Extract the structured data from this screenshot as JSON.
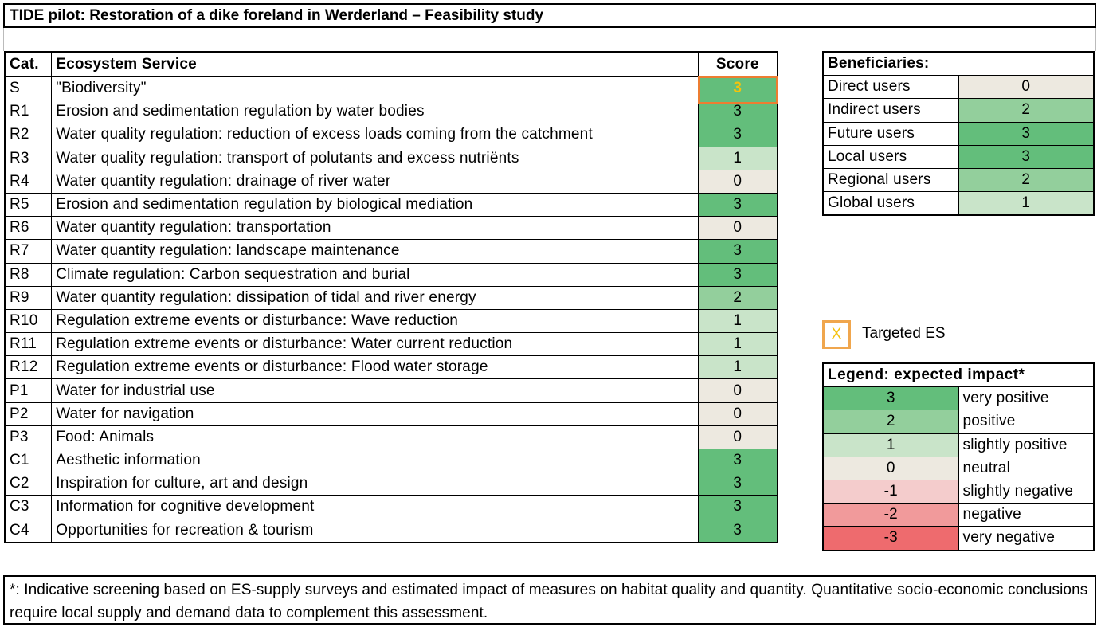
{
  "title": "TIDE pilot: Restoration of a dike foreland in Werderland – Feasibility study",
  "colors": {
    "3": "#63be7b",
    "2": "#93cf9c",
    "1": "#c9e4c9",
    "0": "#ede9e0",
    "-1": "#f4cccc",
    "-2": "#f19a9b",
    "-3": "#ee6b6e",
    "target_frame": "#ed7d31",
    "target_text": "#f4c20d"
  },
  "main_table": {
    "headers": {
      "cat": "Cat.",
      "service": "Ecosystem Service",
      "score": "Score"
    },
    "rows": [
      {
        "cat": "S",
        "service": "\"Biodiversity\"",
        "score": "3",
        "targeted": true
      },
      {
        "cat": "R1",
        "service": "Erosion and sedimentation regulation by water bodies",
        "score": "3"
      },
      {
        "cat": "R2",
        "service": "Water quality regulation: reduction of excess loads coming from the catchment",
        "score": "3"
      },
      {
        "cat": "R3",
        "service": "Water quality regulation: transport of polutants and excess nutriënts",
        "score": "1"
      },
      {
        "cat": "R4",
        "service": "Water quantity regulation: drainage of river water",
        "score": "0"
      },
      {
        "cat": "R5",
        "service": "Erosion and sedimentation regulation by biological mediation",
        "score": "3"
      },
      {
        "cat": "R6",
        "service": "Water quantity regulation: transportation",
        "score": "0"
      },
      {
        "cat": "R7",
        "service": "Water quantity regulation: landscape maintenance",
        "score": "3"
      },
      {
        "cat": "R8",
        "service": "Climate regulation: Carbon sequestration and burial",
        "score": "3"
      },
      {
        "cat": "R9",
        "service": "Water quantity regulation: dissipation of tidal and river energy",
        "score": "2"
      },
      {
        "cat": "R10",
        "service": "Regulation extreme events or disturbance: Wave reduction",
        "score": "1"
      },
      {
        "cat": "R11",
        "service": "Regulation extreme events or disturbance: Water current reduction",
        "score": "1"
      },
      {
        "cat": "R12",
        "service": "Regulation extreme events or disturbance: Flood water storage",
        "score": "1"
      },
      {
        "cat": "P1",
        "service": "Water for industrial use",
        "score": "0"
      },
      {
        "cat": "P2",
        "service": "Water for navigation",
        "score": "0"
      },
      {
        "cat": "P3",
        "service": "Food: Animals",
        "score": "0"
      },
      {
        "cat": "C1",
        "service": "Aesthetic information",
        "score": "3"
      },
      {
        "cat": "C2",
        "service": "Inspiration for culture, art and design",
        "score": "3"
      },
      {
        "cat": "C3",
        "service": "Information for cognitive development",
        "score": "3"
      },
      {
        "cat": "C4",
        "service": "Opportunities for recreation & tourism",
        "score": "3"
      }
    ]
  },
  "beneficiaries": {
    "header": "Beneficiaries:",
    "rows": [
      {
        "label": "Direct users",
        "value": "0"
      },
      {
        "label": "Indirect users",
        "value": "2"
      },
      {
        "label": "Future users",
        "value": "3"
      },
      {
        "label": "Local users",
        "value": "3"
      },
      {
        "label": "Regional users",
        "value": "2"
      },
      {
        "label": "Global users",
        "value": "1"
      }
    ]
  },
  "targeted_key": {
    "symbol": "X",
    "label": "Targeted ES"
  },
  "legend": {
    "header": "Legend: expected  impact*",
    "rows": [
      {
        "value": "3",
        "label": "very positive"
      },
      {
        "value": "2",
        "label": "positive"
      },
      {
        "value": "1",
        "label": "slightly positive"
      },
      {
        "value": "0",
        "label": "neutral"
      },
      {
        "value": "-1",
        "label": "slightly negative"
      },
      {
        "value": "-2",
        "label": "negative"
      },
      {
        "value": "-3",
        "label": "very negative"
      }
    ]
  },
  "footnote": "*: Indicative screening based on ES-supply surveys and estimated impact of measures on habitat quality and quantity. Quantitative socio-economic conclusions require local supply and demand data to complement this assessment."
}
